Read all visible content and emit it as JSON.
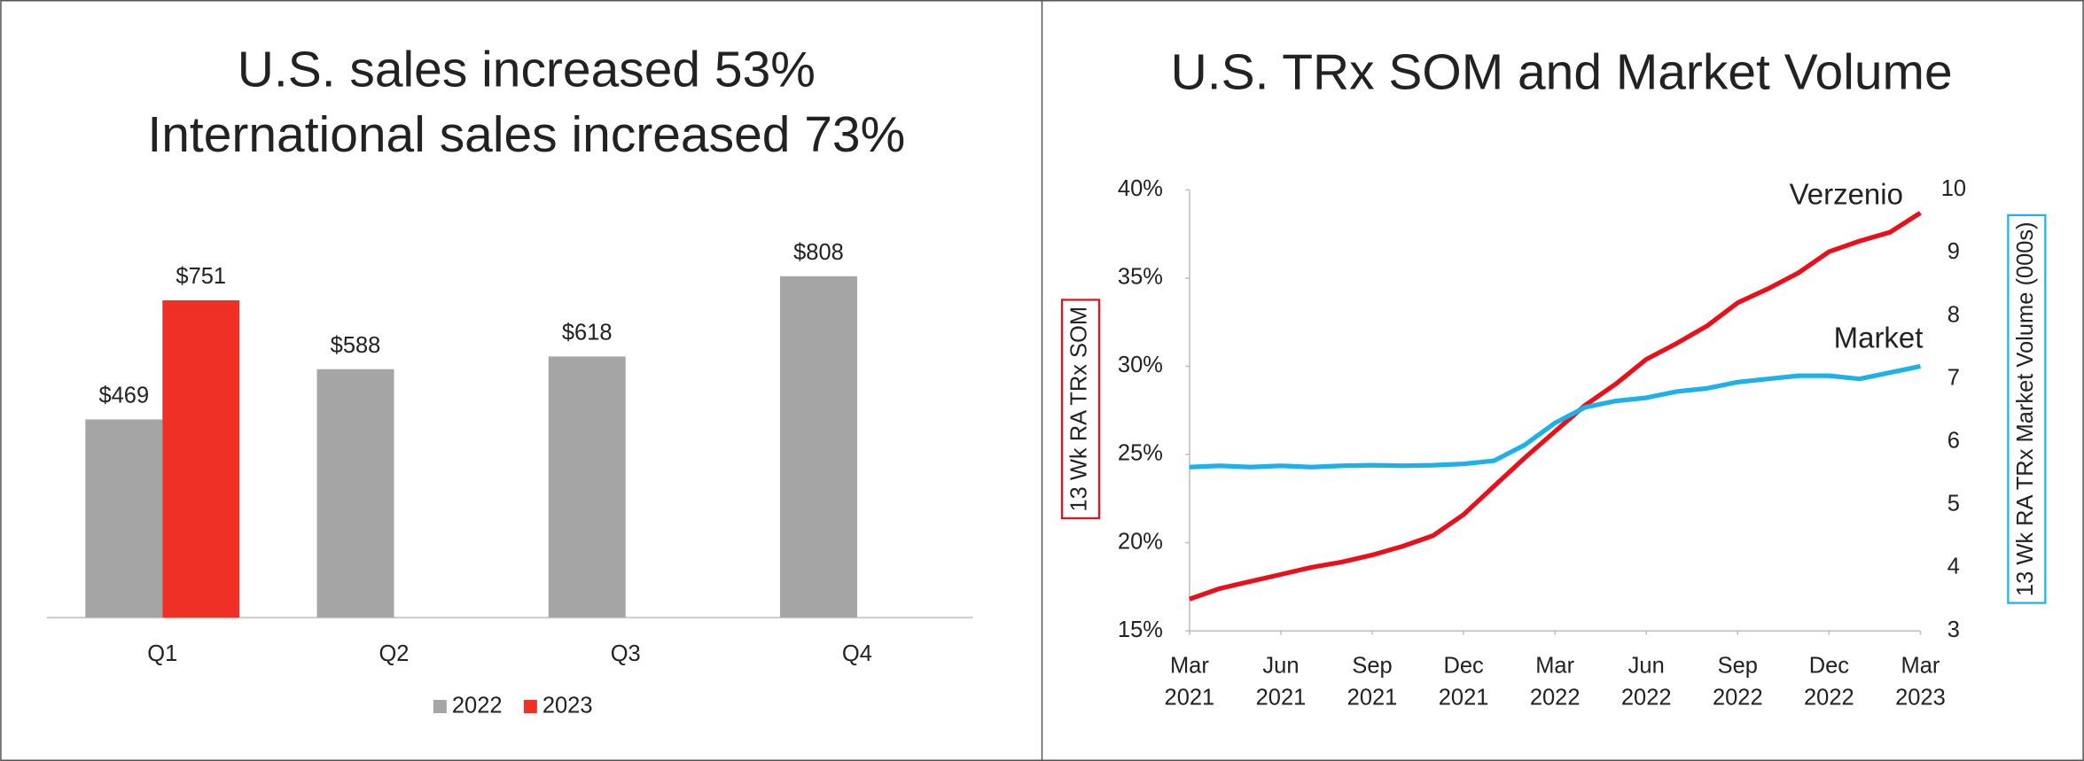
{
  "chart_data": [
    {
      "type": "bar",
      "title": "U.S. sales increased 53%",
      "subtitle": "International sales increased 73%",
      "categories": [
        "Q1",
        "Q2",
        "Q3",
        "Q4"
      ],
      "series": [
        {
          "name": "2022",
          "color": "#a5a5a5",
          "values": [
            469,
            588,
            618,
            808
          ],
          "value_labels": [
            "$469",
            "$588",
            "$618",
            "$808"
          ]
        },
        {
          "name": "2023",
          "color": "#ee3124",
          "values": [
            751,
            null,
            null,
            null
          ],
          "value_labels": [
            "$751",
            null,
            null,
            null
          ]
        }
      ],
      "legend": "bottom"
    },
    {
      "type": "line",
      "title": "U.S. TRx SOM and Market Volume",
      "ylabel": "13 Wk RA TRx SOM",
      "y2label": "13 Wk RA TRx Market Volume (000s)",
      "x": [
        "2021-03",
        "2021-04",
        "2021-05",
        "2021-06",
        "2021-07",
        "2021-08",
        "2021-09",
        "2021-10",
        "2021-11",
        "2021-12",
        "2022-01",
        "2022-02",
        "2022-03",
        "2022-04",
        "2022-05",
        "2022-06",
        "2022-07",
        "2022-08",
        "2022-09",
        "2022-10",
        "2022-11",
        "2022-12",
        "2023-01",
        "2023-02",
        "2023-03"
      ],
      "xlim": [
        "2021-03",
        "2023-03"
      ],
      "xticks": [
        {
          "value": "2021-03",
          "label": "Mar 2021"
        },
        {
          "value": "2021-06",
          "label": "Jun 2021"
        },
        {
          "value": "2021-09",
          "label": "Sep 2021"
        },
        {
          "value": "2021-12",
          "label": "Dec 2021"
        },
        {
          "value": "2022-03",
          "label": "Mar 2022"
        },
        {
          "value": "2022-06",
          "label": "Jun 2022"
        },
        {
          "value": "2022-09",
          "label": "Sep 2022"
        },
        {
          "value": "2022-12",
          "label": "Dec 2022"
        },
        {
          "value": "2023-03",
          "label": "Mar 2023"
        }
      ],
      "ylim": [
        15,
        40
      ],
      "yticks": [
        {
          "value": 15,
          "label": "15%"
        },
        {
          "value": 20,
          "label": "20%"
        },
        {
          "value": 25,
          "label": "25%"
        },
        {
          "value": 30,
          "label": "30%"
        },
        {
          "value": 35,
          "label": "35%"
        },
        {
          "value": 40,
          "label": "40%"
        }
      ],
      "y2lim": [
        3,
        10
      ],
      "y2ticks": [
        3,
        4,
        5,
        6,
        7,
        8,
        9,
        10
      ],
      "series": [
        {
          "name": "Verzenio",
          "color": "#e8101b",
          "values": [
            16.8,
            17.4,
            17.8,
            18.2,
            18.6,
            18.9,
            19.3,
            19.8,
            20.4,
            21.6,
            23.2,
            24.8,
            26.3,
            27.8,
            29.0,
            30.4,
            31.3,
            32.3,
            33.6,
            34.4,
            35.3,
            36.5,
            37.1,
            37.6,
            38.7
          ]
        },
        {
          "name": "Market",
          "color": "#1eb1e7",
          "axis": "y2",
          "values": [
            5.6,
            5.62,
            5.6,
            5.62,
            5.6,
            5.62,
            5.63,
            5.62,
            5.63,
            5.65,
            5.7,
            5.95,
            6.3,
            6.55,
            6.65,
            6.7,
            6.8,
            6.85,
            6.95,
            7.0,
            7.05,
            7.05,
            7.0,
            7.1,
            7.2
          ]
        }
      ],
      "grid": false
    }
  ]
}
